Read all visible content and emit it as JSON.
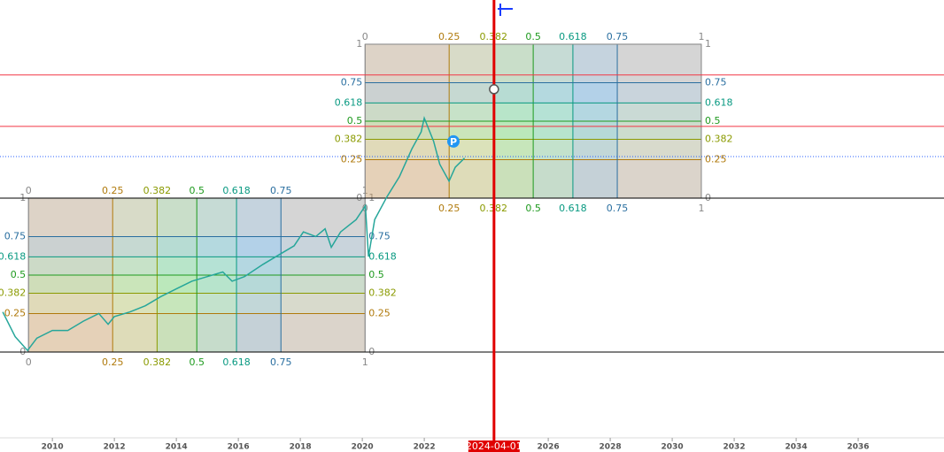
{
  "chart_data": {
    "type": "line",
    "x": [
      2008.4,
      2008.8,
      2009.2,
      2009.5,
      2010,
      2010.5,
      2011,
      2011.5,
      2011.8,
      2012,
      2012.5,
      2013,
      2013.5,
      2014,
      2014.5,
      2015,
      2015.5,
      2015.8,
      2016.2,
      2016.8,
      2017.3,
      2017.8,
      2018.1,
      2018.5,
      2018.8,
      2019,
      2019.3,
      2019.8,
      2020.1,
      2020.2,
      2020.4,
      2020.8,
      2021.2,
      2021.6,
      2021.9,
      2022.0,
      2022.3,
      2022.5,
      2022.8,
      2023.0,
      2023.3
    ],
    "series": [
      {
        "color": "#26a69a",
        "values": [
          0.26,
          0.1,
          0.01,
          0.09,
          0.14,
          0.14,
          0.2,
          0.25,
          0.18,
          0.23,
          0.26,
          0.3,
          0.36,
          0.41,
          0.46,
          0.49,
          0.52,
          0.46,
          0.49,
          0.57,
          0.63,
          0.69,
          0.78,
          0.75,
          0.8,
          0.68,
          0.78,
          0.86,
          0.95,
          0.62,
          0.86,
          1.01,
          1.14,
          1.32,
          1.43,
          1.52,
          1.37,
          1.22,
          1.11,
          1.2,
          1.26
        ]
      }
    ],
    "xlim": [
      2008.31,
      2038.77
    ],
    "ylim": [
      -0.529,
      2.287
    ],
    "xticks": [
      2010,
      2012,
      2014,
      2016,
      2018,
      2020,
      2022,
      2026,
      2028,
      2030,
      2032,
      2034,
      2036
    ],
    "levels": [
      0,
      0.25,
      0.382,
      0.5,
      0.618,
      0.75,
      1
    ],
    "level_colors": [
      "#888888",
      "#b07a0c",
      "#8a9a00",
      "#1e9a1e",
      "#089981",
      "#2a6fa0",
      "#888888"
    ],
    "band_colors": [
      "#c9a06a",
      "#b3c46e",
      "#6fd06f",
      "#62c4a8",
      "#5f9fcf",
      "#a8a8a8"
    ],
    "fib_boxes": [
      {
        "x": [
          2009.23,
          2020.09
        ],
        "y": [
          0,
          1
        ]
      },
      {
        "x": [
          2020.09,
          2030.94
        ],
        "y": [
          1,
          2
        ]
      }
    ],
    "hlines": [
      {
        "value": 1.8,
        "color": "#f23645",
        "style": "solid"
      },
      {
        "value": 1.466,
        "color": "#f23645",
        "style": "solid"
      },
      {
        "value": 1.27,
        "color": "#2962ff",
        "style": "dotted"
      },
      {
        "value": 1,
        "color": "#000000",
        "style": "solid"
      },
      {
        "value": 0,
        "color": "#000000",
        "style": "solid"
      }
    ],
    "cursor": {
      "x": 2024.25,
      "label": "2024-04-01",
      "color": "#e00000"
    },
    "anchor": {
      "x": 2024.25,
      "y": 1.707
    },
    "pin": {
      "x": 2022.94,
      "y": 1.368,
      "label": "P",
      "color": "#2196f3"
    }
  }
}
